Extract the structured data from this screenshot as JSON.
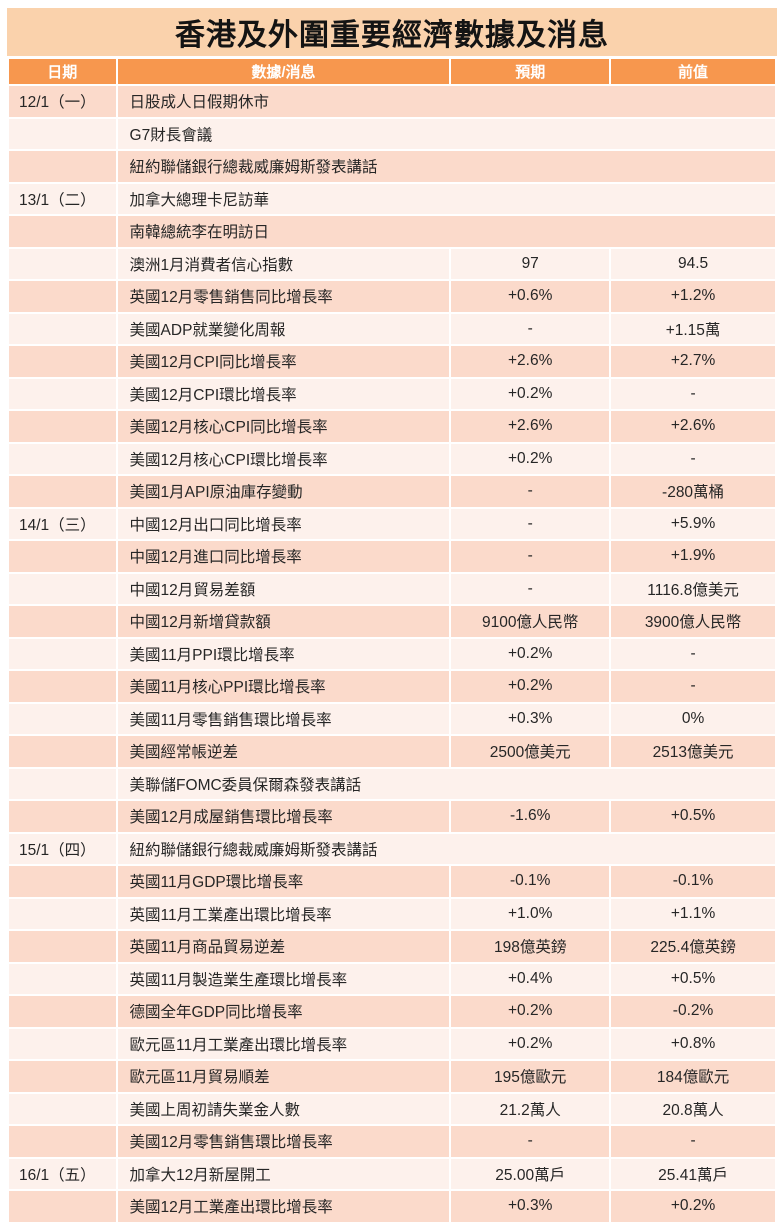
{
  "title": "香港及外圍重要經濟數據及消息",
  "columns": [
    "日期",
    "數據/消息",
    "預期",
    "前值"
  ],
  "colors": {
    "header_bg": "#F7974E",
    "header_text": "#FFFFFF",
    "title_bg": "#FAD2AC",
    "row_dark": "#FBDACB",
    "row_light": "#FDF1EC",
    "body_text": "#262626"
  },
  "rows": [
    {
      "date": "12/1（一）",
      "item": "日股成人日假期休市",
      "expected": "",
      "previous": ""
    },
    {
      "date": "",
      "item": "G7財長會議",
      "expected": "",
      "previous": ""
    },
    {
      "date": "",
      "item": "紐約聯儲銀行總裁威廉姆斯發表講話",
      "expected": "",
      "previous": ""
    },
    {
      "date": "13/1（二）",
      "item": "加拿大總理卡尼訪華",
      "expected": "",
      "previous": ""
    },
    {
      "date": "",
      "item": "南韓總統李在明訪日",
      "expected": "",
      "previous": ""
    },
    {
      "date": "",
      "item": "澳洲1月消費者信心指數",
      "expected": "97",
      "previous": "94.5"
    },
    {
      "date": "",
      "item": "英國12月零售銷售同比增長率",
      "expected": "+0.6%",
      "previous": "+1.2%"
    },
    {
      "date": "",
      "item": "美國ADP就業變化周報",
      "expected": "-",
      "previous": "+1.15萬"
    },
    {
      "date": "",
      "item": "美國12月CPI同比增長率",
      "expected": "+2.6%",
      "previous": "+2.7%"
    },
    {
      "date": "",
      "item": "美國12月CPI環比增長率",
      "expected": "+0.2%",
      "previous": "-"
    },
    {
      "date": "",
      "item": "美國12月核心CPI同比增長率",
      "expected": "+2.6%",
      "previous": "+2.6%"
    },
    {
      "date": "",
      "item": "美國12月核心CPI環比增長率",
      "expected": "+0.2%",
      "previous": "-"
    },
    {
      "date": "",
      "item": "美國1月API原油庫存變動",
      "expected": "-",
      "previous": "-280萬桶"
    },
    {
      "date": "14/1（三）",
      "item": "中國12月出口同比增長率",
      "expected": "-",
      "previous": "+5.9%"
    },
    {
      "date": "",
      "item": "中國12月進口同比增長率",
      "expected": "-",
      "previous": "+1.9%"
    },
    {
      "date": "",
      "item": "中國12月貿易差額",
      "expected": "-",
      "previous": "1116.8億美元"
    },
    {
      "date": "",
      "item": "中國12月新增貸款額",
      "expected": "9100億人民幣",
      "previous": "3900億人民幣"
    },
    {
      "date": "",
      "item": "美國11月PPI環比增長率",
      "expected": "+0.2%",
      "previous": "-"
    },
    {
      "date": "",
      "item": "美國11月核心PPI環比增長率",
      "expected": "+0.2%",
      "previous": "-"
    },
    {
      "date": "",
      "item": "美國11月零售銷售環比增長率",
      "expected": "+0.3%",
      "previous": "0%"
    },
    {
      "date": "",
      "item": "美國經常帳逆差",
      "expected": "2500億美元",
      "previous": "2513億美元"
    },
    {
      "date": "",
      "item": "美聯儲FOMC委員保爾森發表講話",
      "expected": "",
      "previous": ""
    },
    {
      "date": "",
      "item": "美國12月成屋銷售環比增長率",
      "expected": "-1.6%",
      "previous": "+0.5%"
    },
    {
      "date": "15/1（四）",
      "item": "紐約聯儲銀行總裁威廉姆斯發表講話",
      "expected": "",
      "previous": ""
    },
    {
      "date": "",
      "item": "英國11月GDP環比增長率",
      "expected": "-0.1%",
      "previous": "-0.1%"
    },
    {
      "date": "",
      "item": "英國11月工業產出環比增長率",
      "expected": "+1.0%",
      "previous": "+1.1%"
    },
    {
      "date": "",
      "item": "英國11月商品貿易逆差",
      "expected": "198億英鎊",
      "previous": "225.4億英鎊"
    },
    {
      "date": "",
      "item": "英國11月製造業生產環比增長率",
      "expected": "+0.4%",
      "previous": "+0.5%"
    },
    {
      "date": "",
      "item": "德國全年GDP同比增長率",
      "expected": "+0.2%",
      "previous": "-0.2%"
    },
    {
      "date": "",
      "item": "歐元區11月工業產出環比增長率",
      "expected": "+0.2%",
      "previous": "+0.8%"
    },
    {
      "date": "",
      "item": "歐元區11月貿易順差",
      "expected": "195億歐元",
      "previous": "184億歐元"
    },
    {
      "date": "",
      "item": "美國上周初請失業金人數",
      "expected": "21.2萬人",
      "previous": "20.8萬人"
    },
    {
      "date": "",
      "item": "美國12月零售銷售環比增長率",
      "expected": "-",
      "previous": "-"
    },
    {
      "date": "16/1（五）",
      "item": "加拿大12月新屋開工",
      "expected": "25.00萬戶",
      "previous": "25.41萬戶"
    },
    {
      "date": "",
      "item": "美國12月工業產出環比增長率",
      "expected": "+0.3%",
      "previous": "+0.2%"
    }
  ]
}
